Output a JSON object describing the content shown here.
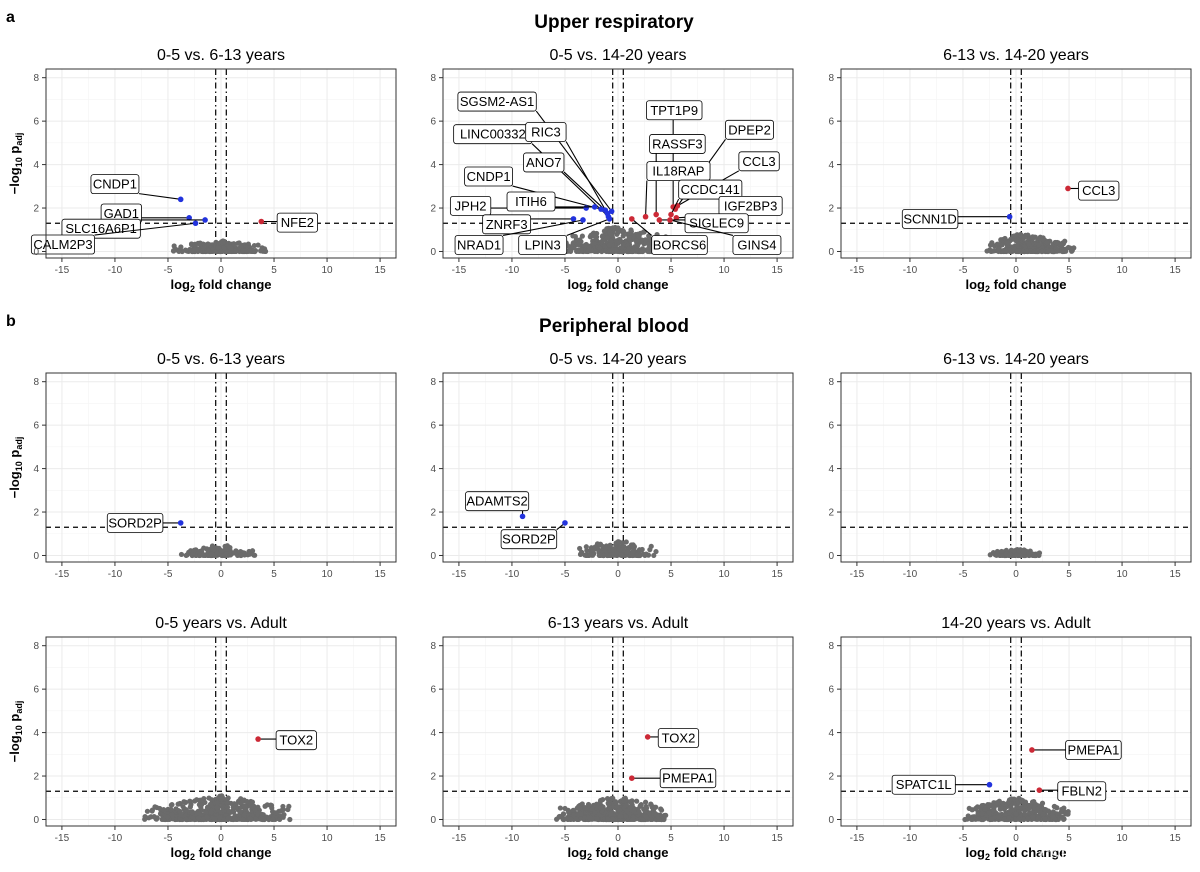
{
  "figure": {
    "sections": [
      {
        "letter": "a",
        "title": "Upper respiratory"
      },
      {
        "letter": "b",
        "title": "Peripheral blood"
      }
    ],
    "watermark": "CSDN @生信学习者1"
  },
  "colors": {
    "not_significant": "#6b6b6b",
    "up_regulated": "#cc2936",
    "down_regulated": "#2233dd"
  },
  "chart_data": [
    {
      "type": "scatter",
      "section": "Upper respiratory",
      "title": "0-5 vs. 6-13 years",
      "xlabel": "log2 fold change",
      "ylabel": "-log10 padj",
      "xlim": [
        -16.5,
        16.5
      ],
      "ylim": [
        -0.3,
        8.4
      ],
      "xticks": [
        -15,
        -10,
        -5,
        0,
        5,
        10,
        15
      ],
      "yticks": [
        0,
        2,
        4,
        6,
        8
      ],
      "vlines": [
        -0.5,
        0.5
      ],
      "hline": 1.3,
      "grid": true,
      "cloud": {
        "x_range": [
          -4.5,
          4.5
        ],
        "y_max": 0.5,
        "n": 260,
        "seed": 11
      },
      "points": [
        {
          "gene": "CNDP1",
          "x": -3.8,
          "y": 2.4,
          "dir": "down",
          "lx": -10.0,
          "ly": 3.1
        },
        {
          "gene": "GAD1",
          "x": -3.0,
          "y": 1.55,
          "dir": "down",
          "lx": -9.4,
          "ly": 1.75
        },
        {
          "gene": "SLC16A6P1",
          "x": -1.5,
          "y": 1.45,
          "dir": "down",
          "lx": -11.3,
          "ly": 1.05
        },
        {
          "gene": "CALM2P3",
          "x": -2.4,
          "y": 1.3,
          "dir": "down",
          "lx": -14.9,
          "ly": 0.32
        },
        {
          "gene": "NFE2",
          "x": 3.8,
          "y": 1.38,
          "dir": "up",
          "lx": 7.2,
          "ly": 1.33
        }
      ]
    },
    {
      "type": "scatter",
      "section": "Upper respiratory",
      "title": "0-5 vs. 14-20 years",
      "xlabel": "log2 fold change",
      "ylabel": "-log10 padj",
      "xlim": [
        -16.5,
        16.5
      ],
      "ylim": [
        -0.3,
        8.4
      ],
      "xticks": [
        -15,
        -10,
        -5,
        0,
        5,
        10,
        15
      ],
      "yticks": [
        0,
        2,
        4,
        6,
        8
      ],
      "vlines": [
        -0.5,
        0.5
      ],
      "hline": 1.3,
      "grid": true,
      "cloud": {
        "x_range": [
          -5.5,
          5.5
        ],
        "y_max": 1.2,
        "n": 380,
        "seed": 23
      },
      "points": [
        {
          "gene": "SGSM2-AS1",
          "x": -0.6,
          "y": 1.85,
          "dir": "down",
          "lx": -11.4,
          "ly": 6.9
        },
        {
          "gene": "LINC00332",
          "x": -0.9,
          "y": 1.6,
          "dir": "down",
          "lx": -11.8,
          "ly": 5.4
        },
        {
          "gene": "RIC3",
          "x": -1.0,
          "y": 1.75,
          "dir": "down",
          "lx": -6.8,
          "ly": 5.5
        },
        {
          "gene": "ANO7",
          "x": -1.2,
          "y": 1.9,
          "dir": "down",
          "lx": -7.0,
          "ly": 4.1
        },
        {
          "gene": "CNDP1",
          "x": -1.6,
          "y": 1.95,
          "dir": "down",
          "lx": -12.2,
          "ly": 3.45
        },
        {
          "gene": "JPH2",
          "x": -3.0,
          "y": 2.0,
          "dir": "down",
          "lx": -13.9,
          "ly": 2.1
        },
        {
          "gene": "ITIH6",
          "x": -2.2,
          "y": 2.05,
          "dir": "down",
          "lx": -8.2,
          "ly": 2.3
        },
        {
          "gene": "ZNRF3",
          "x": -4.2,
          "y": 1.5,
          "dir": "down",
          "lx": -10.5,
          "ly": 1.25
        },
        {
          "gene": "NRAD1",
          "x": -3.3,
          "y": 1.45,
          "dir": "down",
          "lx": -13.1,
          "ly": 0.3
        },
        {
          "gene": "LPIN3",
          "x": -0.8,
          "y": 1.5,
          "dir": "down",
          "lx": -7.1,
          "ly": 0.3
        },
        {
          "gene": "TPT1P9",
          "x": 5.2,
          "y": 2.05,
          "dir": "up",
          "lx": 5.3,
          "ly": 6.5
        },
        {
          "gene": "RASSF3",
          "x": 3.6,
          "y": 1.7,
          "dir": "up",
          "lx": 5.6,
          "ly": 4.95
        },
        {
          "gene": "DPEP2",
          "x": 5.4,
          "y": 1.95,
          "dir": "up",
          "lx": 12.4,
          "ly": 5.6
        },
        {
          "gene": "IL18RAP",
          "x": 2.6,
          "y": 1.6,
          "dir": "up",
          "lx": 5.7,
          "ly": 3.7
        },
        {
          "gene": "CCL3",
          "x": 5.6,
          "y": 2.1,
          "dir": "up",
          "lx": 13.3,
          "ly": 4.15
        },
        {
          "gene": "CCDC141",
          "x": 5.0,
          "y": 1.7,
          "dir": "up",
          "lx": 8.7,
          "ly": 2.85
        },
        {
          "gene": "IGF2BP3",
          "x": 5.5,
          "y": 1.55,
          "dir": "up",
          "lx": 12.5,
          "ly": 2.1
        },
        {
          "gene": "SIGLEC9",
          "x": 3.9,
          "y": 1.45,
          "dir": "up",
          "lx": 9.3,
          "ly": 1.3
        },
        {
          "gene": "BORCS6",
          "x": 1.3,
          "y": 1.5,
          "dir": "up",
          "lx": 5.8,
          "ly": 0.3
        },
        {
          "gene": "GINS4",
          "x": 4.9,
          "y": 1.45,
          "dir": "up",
          "lx": 13.1,
          "ly": 0.3
        }
      ]
    },
    {
      "type": "scatter",
      "section": "Upper respiratory",
      "title": "6-13 vs. 14-20 years",
      "xlabel": "log2 fold change",
      "ylabel": "-log10 padj",
      "xlim": [
        -16.5,
        16.5
      ],
      "ylim": [
        -0.3,
        8.4
      ],
      "xticks": [
        -15,
        -10,
        -5,
        0,
        5,
        10,
        15
      ],
      "yticks": [
        0,
        2,
        4,
        6,
        8
      ],
      "vlines": [
        -0.5,
        0.5
      ],
      "hline": 1.3,
      "grid": true,
      "cloud": {
        "x_range": [
          -3.0,
          5.5
        ],
        "y_max": 0.85,
        "n": 300,
        "seed": 37
      },
      "points": [
        {
          "gene": "SCNN1D",
          "x": -0.6,
          "y": 1.6,
          "dir": "down",
          "lx": -8.1,
          "ly": 1.5
        },
        {
          "gene": "CCL3",
          "x": 4.9,
          "y": 2.9,
          "dir": "up",
          "lx": 7.8,
          "ly": 2.8
        }
      ]
    },
    {
      "type": "scatter",
      "section": "Peripheral blood",
      "title": "0-5 vs. 6-13 years",
      "xlabel": "log2 fold change",
      "ylabel": "-log10 padj",
      "xlim": [
        -16.5,
        16.5
      ],
      "ylim": [
        -0.3,
        8.4
      ],
      "xticks": [
        -15,
        -10,
        -5,
        0,
        5,
        10,
        15
      ],
      "yticks": [
        0,
        2,
        4,
        6,
        8
      ],
      "vlines": [
        -0.5,
        0.5
      ],
      "hline": 1.3,
      "grid": true,
      "cloud": {
        "x_range": [
          -4.0,
          3.2
        ],
        "y_max": 0.5,
        "n": 130,
        "seed": 41
      },
      "points": [
        {
          "gene": "SORD2P",
          "x": -3.8,
          "y": 1.5,
          "dir": "down",
          "lx": -8.1,
          "ly": 1.5
        }
      ]
    },
    {
      "type": "scatter",
      "section": "Peripheral blood",
      "title": "0-5 vs. 14-20 years",
      "xlabel": "log2 fold change",
      "ylabel": "-log10 padj",
      "xlim": [
        -16.5,
        16.5
      ],
      "ylim": [
        -0.3,
        8.4
      ],
      "xticks": [
        -15,
        -10,
        -5,
        0,
        5,
        10,
        15
      ],
      "yticks": [
        0,
        2,
        4,
        6,
        8
      ],
      "vlines": [
        -0.5,
        0.5
      ],
      "hline": 1.3,
      "grid": true,
      "cloud": {
        "x_range": [
          -4.0,
          3.8
        ],
        "y_max": 0.7,
        "n": 170,
        "seed": 53
      },
      "points": [
        {
          "gene": "ADAMTS2",
          "x": -9.0,
          "y": 1.8,
          "dir": "down",
          "lx": -11.4,
          "ly": 2.5
        },
        {
          "gene": "SORD2P",
          "x": -5.0,
          "y": 1.5,
          "dir": "down",
          "lx": -8.4,
          "ly": 0.75
        }
      ]
    },
    {
      "type": "scatter",
      "section": "Peripheral blood",
      "title": "6-13 vs. 14-20 years",
      "xlabel": "log2 fold change",
      "ylabel": "-log10 padj",
      "xlim": [
        -16.5,
        16.5
      ],
      "ylim": [
        -0.3,
        8.4
      ],
      "xticks": [
        -15,
        -10,
        -5,
        0,
        5,
        10,
        15
      ],
      "yticks": [
        0,
        2,
        4,
        6,
        8
      ],
      "vlines": [
        -0.5,
        0.5
      ],
      "hline": 1.3,
      "grid": true,
      "cloud": {
        "x_range": [
          -2.5,
          2.5
        ],
        "y_max": 0.3,
        "n": 90,
        "seed": 67
      },
      "points": []
    },
    {
      "type": "scatter",
      "section": "Peripheral blood",
      "title": "0-5 years vs. Adult",
      "xlabel": "log2 fold change",
      "ylabel": "-log10 padj",
      "xlim": [
        -16.5,
        16.5
      ],
      "ylim": [
        -0.3,
        8.4
      ],
      "xticks": [
        -15,
        -10,
        -5,
        0,
        5,
        10,
        15
      ],
      "yticks": [
        0,
        2,
        4,
        6,
        8
      ],
      "vlines": [
        -0.5,
        0.5
      ],
      "hline": 1.3,
      "grid": true,
      "cloud": {
        "x_range": [
          -7.5,
          6.5
        ],
        "y_max": 1.1,
        "n": 480,
        "seed": 71
      },
      "points": [
        {
          "gene": "TOX2",
          "x": 3.5,
          "y": 3.7,
          "dir": "up",
          "lx": 7.1,
          "ly": 3.65
        }
      ]
    },
    {
      "type": "scatter",
      "section": "Peripheral blood",
      "title": "6-13 years vs. Adult",
      "xlabel": "log2 fold change",
      "ylabel": "-log10 padj",
      "xlim": [
        -16.5,
        16.5
      ],
      "ylim": [
        -0.3,
        8.4
      ],
      "xticks": [
        -15,
        -10,
        -5,
        0,
        5,
        10,
        15
      ],
      "yticks": [
        0,
        2,
        4,
        6,
        8
      ],
      "vlines": [
        -0.5,
        0.5
      ],
      "hline": 1.3,
      "grid": true,
      "cloud": {
        "x_range": [
          -6.0,
          5.0
        ],
        "y_max": 1.05,
        "n": 420,
        "seed": 83
      },
      "points": [
        {
          "gene": "TOX2",
          "x": 2.8,
          "y": 3.8,
          "dir": "up",
          "lx": 5.7,
          "ly": 3.75
        },
        {
          "gene": "PMEPA1",
          "x": 1.3,
          "y": 1.9,
          "dir": "up",
          "lx": 6.6,
          "ly": 1.9
        }
      ]
    },
    {
      "type": "scatter",
      "section": "Peripheral blood",
      "title": "14-20 years vs. Adult",
      "xlabel": "log2 fold change",
      "ylabel": "-log10 padj",
      "xlim": [
        -16.5,
        16.5
      ],
      "ylim": [
        -0.3,
        8.4
      ],
      "xticks": [
        -15,
        -10,
        -5,
        0,
        5,
        10,
        15
      ],
      "yticks": [
        0,
        2,
        4,
        6,
        8
      ],
      "vlines": [
        -0.5,
        0.5
      ],
      "hline": 1.3,
      "grid": true,
      "cloud": {
        "x_range": [
          -5.0,
          5.0
        ],
        "y_max": 1.0,
        "n": 340,
        "seed": 97
      },
      "points": [
        {
          "gene": "PMEPA1",
          "x": 1.5,
          "y": 3.2,
          "dir": "up",
          "lx": 7.3,
          "ly": 3.2
        },
        {
          "gene": "SPATC1L",
          "x": -2.5,
          "y": 1.6,
          "dir": "down",
          "lx": -8.7,
          "ly": 1.6
        },
        {
          "gene": "FBLN2",
          "x": 2.2,
          "y": 1.35,
          "dir": "up",
          "lx": 6.2,
          "ly": 1.3
        }
      ]
    }
  ]
}
